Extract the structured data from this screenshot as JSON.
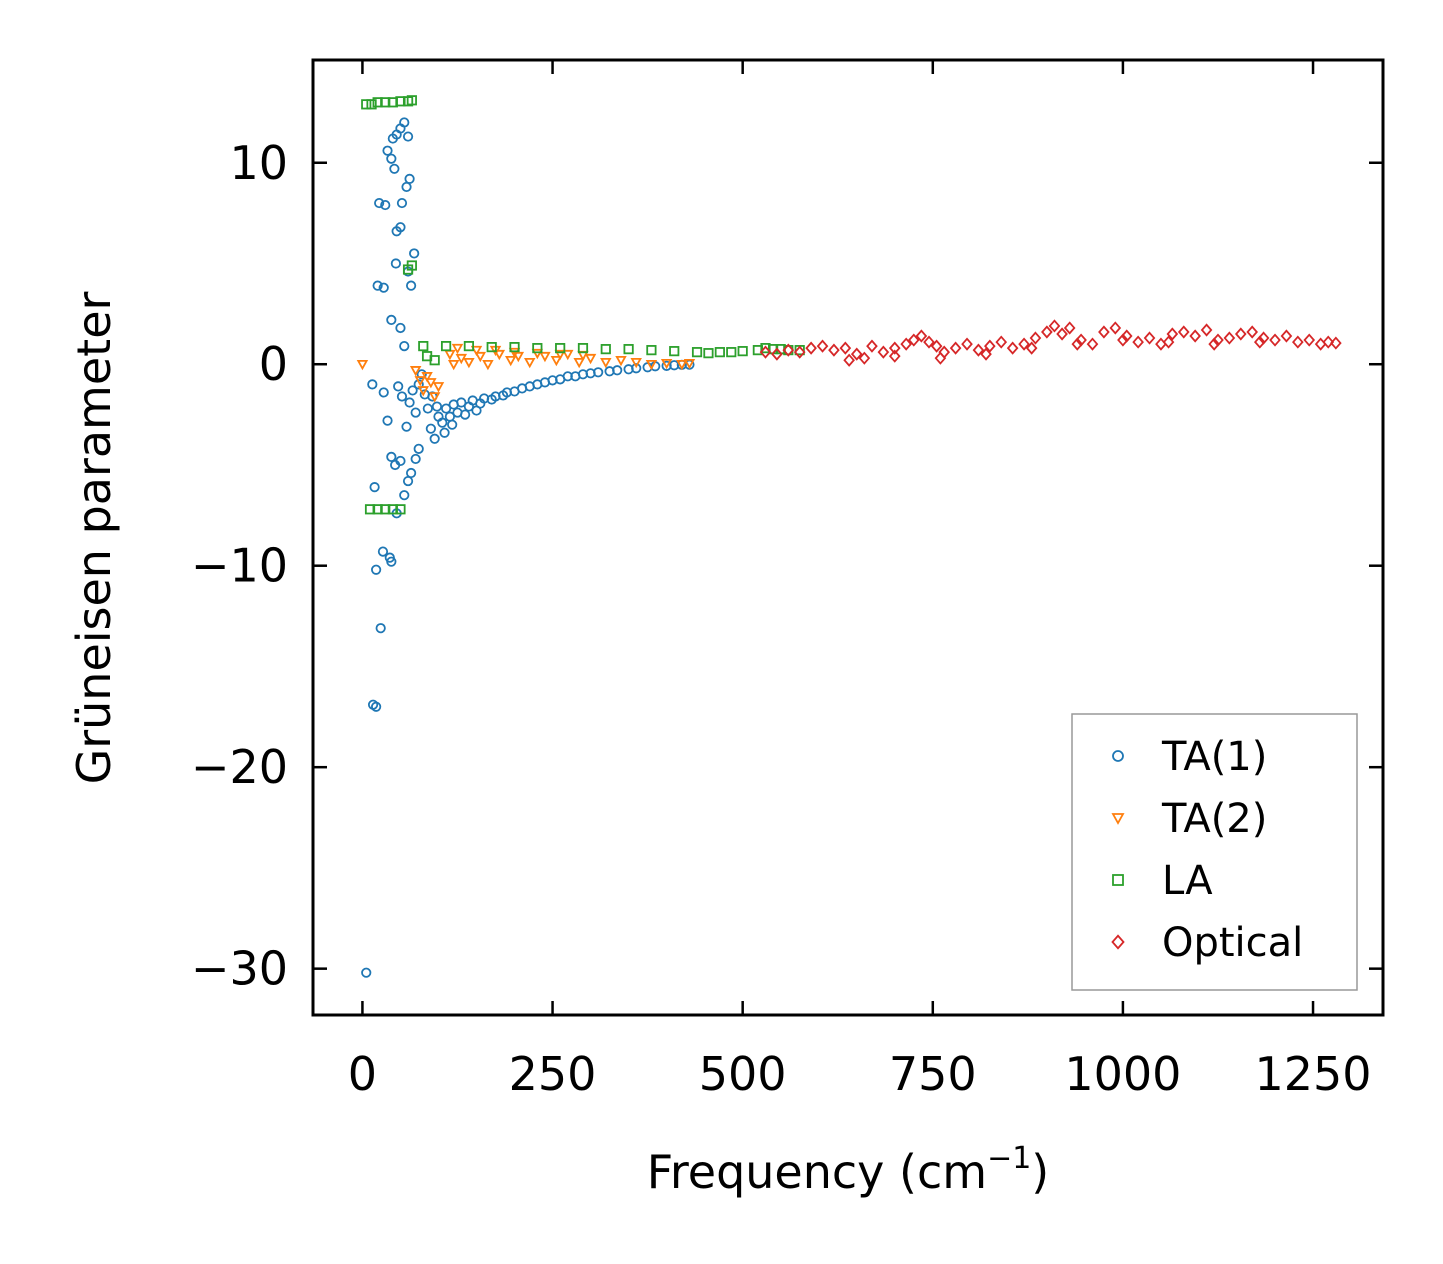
{
  "chart_data": {
    "type": "scatter",
    "title": "",
    "xlabel": "Frequency (cm",
    "xlabel_sup": "−1",
    "xlabel_end": ")",
    "ylabel": "Grüneisen parameter",
    "xlim": [
      -65,
      1342
    ],
    "ylim": [
      -32.3,
      15.1
    ],
    "xticks": [
      0,
      250,
      500,
      750,
      1000,
      1250
    ],
    "yticks": [
      10,
      0,
      -10,
      -20,
      -30
    ],
    "xtick_labels": [
      "0",
      "250",
      "500",
      "750",
      "1000",
      "1250"
    ],
    "ytick_labels": [
      "10",
      "0",
      "−10",
      "−20",
      "−30"
    ],
    "legend_position": "bottom-right",
    "series": [
      {
        "name": "TA(1)",
        "marker": "circle",
        "color": "#1f77b4",
        "points": [
          [
            5,
            -30.2
          ],
          [
            14,
            -16.9
          ],
          [
            18,
            -17.0
          ],
          [
            24,
            -13.1
          ],
          [
            18,
            -10.2
          ],
          [
            27,
            -9.3
          ],
          [
            36,
            -9.6
          ],
          [
            38,
            -9.8
          ],
          [
            16,
            -6.1
          ],
          [
            45,
            -7.4
          ],
          [
            13,
            -1.0
          ],
          [
            28,
            -1.4
          ],
          [
            33,
            -2.8
          ],
          [
            38,
            -4.6
          ],
          [
            43,
            -5.0
          ],
          [
            50,
            -4.8
          ],
          [
            55,
            -6.5
          ],
          [
            60,
            -5.8
          ],
          [
            64,
            -5.4
          ],
          [
            70,
            -4.7
          ],
          [
            74,
            -4.2
          ],
          [
            20,
            3.9
          ],
          [
            28,
            3.8
          ],
          [
            38,
            2.2
          ],
          [
            44,
            5.0
          ],
          [
            50,
            1.8
          ],
          [
            55,
            0.9
          ],
          [
            60,
            4.6
          ],
          [
            64,
            3.9
          ],
          [
            68,
            5.5
          ],
          [
            22,
            8.0
          ],
          [
            30,
            7.9
          ],
          [
            38,
            10.2
          ],
          [
            40,
            11.2
          ],
          [
            45,
            11.4
          ],
          [
            50,
            11.7
          ],
          [
            55,
            12.0
          ],
          [
            60,
            11.3
          ],
          [
            62,
            9.2
          ],
          [
            58,
            8.8
          ],
          [
            52,
            8.0
          ],
          [
            45,
            6.6
          ],
          [
            50,
            6.8
          ],
          [
            42,
            9.7
          ],
          [
            33,
            10.6
          ],
          [
            47,
            -1.1
          ],
          [
            52,
            -1.6
          ],
          [
            58,
            -3.1
          ],
          [
            62,
            -1.9
          ],
          [
            66,
            -1.3
          ],
          [
            70,
            -2.4
          ],
          [
            74,
            -1.0
          ],
          [
            78,
            -0.5
          ],
          [
            82,
            -1.5
          ],
          [
            86,
            -2.2
          ],
          [
            90,
            -3.2
          ],
          [
            95,
            -3.7
          ],
          [
            100,
            -2.6
          ],
          [
            110,
            -2.2
          ],
          [
            120,
            -2.0
          ],
          [
            130,
            -1.9
          ],
          [
            145,
            -1.8
          ],
          [
            160,
            -1.7
          ],
          [
            175,
            -1.6
          ],
          [
            190,
            -1.4
          ],
          [
            210,
            -1.2
          ],
          [
            230,
            -1.0
          ],
          [
            250,
            -0.8
          ],
          [
            270,
            -0.6
          ],
          [
            290,
            -0.5
          ],
          [
            310,
            -0.4
          ],
          [
            335,
            -0.3
          ],
          [
            360,
            -0.2
          ],
          [
            385,
            -0.1
          ],
          [
            410,
            -0.05
          ],
          [
            430,
            -0.02
          ],
          [
            105,
            -2.9
          ],
          [
            115,
            -2.6
          ],
          [
            125,
            -2.4
          ],
          [
            140,
            -2.1
          ],
          [
            155,
            -1.95
          ],
          [
            170,
            -1.75
          ],
          [
            185,
            -1.55
          ],
          [
            200,
            -1.35
          ],
          [
            220,
            -1.1
          ],
          [
            240,
            -0.9
          ],
          [
            260,
            -0.75
          ],
          [
            280,
            -0.6
          ],
          [
            300,
            -0.45
          ],
          [
            325,
            -0.35
          ],
          [
            350,
            -0.25
          ],
          [
            375,
            -0.15
          ],
          [
            400,
            -0.08
          ],
          [
            420,
            -0.03
          ],
          [
            92,
            -1.6
          ],
          [
            98,
            -2.1
          ],
          [
            108,
            -3.4
          ],
          [
            118,
            -3.0
          ],
          [
            135,
            -2.5
          ],
          [
            150,
            -2.3
          ]
        ]
      },
      {
        "name": "TA(2)",
        "marker": "triangle-down",
        "color": "#ff7f0e",
        "points": [
          [
            0,
            0.0
          ],
          [
            70,
            -0.3
          ],
          [
            76,
            -0.8
          ],
          [
            80,
            -1.3
          ],
          [
            85,
            -0.6
          ],
          [
            90,
            -0.9
          ],
          [
            115,
            0.5
          ],
          [
            120,
            0.0
          ],
          [
            130,
            0.3
          ],
          [
            140,
            0.1
          ],
          [
            155,
            0.4
          ],
          [
            165,
            0.0
          ],
          [
            180,
            0.5
          ],
          [
            195,
            0.2
          ],
          [
            205,
            0.4
          ],
          [
            220,
            0.1
          ],
          [
            240,
            0.4
          ],
          [
            255,
            0.2
          ],
          [
            270,
            0.5
          ],
          [
            285,
            0.1
          ],
          [
            300,
            0.3
          ],
          [
            320,
            0.1
          ],
          [
            340,
            0.2
          ],
          [
            360,
            0.1
          ],
          [
            380,
            0.0
          ],
          [
            400,
            0.05
          ],
          [
            420,
            0.0
          ],
          [
            430,
            0.05
          ],
          [
            125,
            0.8
          ],
          [
            150,
            0.7
          ],
          [
            175,
            0.7
          ],
          [
            200,
            0.6
          ],
          [
            230,
            0.55
          ],
          [
            260,
            0.5
          ],
          [
            290,
            0.45
          ],
          [
            95,
            -1.6
          ],
          [
            100,
            -1.1
          ]
        ]
      },
      {
        "name": "LA",
        "marker": "square",
        "color": "#2ca02c",
        "points": [
          [
            5,
            12.9
          ],
          [
            12,
            12.9
          ],
          [
            20,
            13.0
          ],
          [
            30,
            13.0
          ],
          [
            40,
            13.0
          ],
          [
            50,
            13.05
          ],
          [
            60,
            13.05
          ],
          [
            65,
            13.1
          ],
          [
            10,
            -7.2
          ],
          [
            20,
            -7.2
          ],
          [
            30,
            -7.2
          ],
          [
            40,
            -7.2
          ],
          [
            50,
            -7.2
          ],
          [
            60,
            4.7
          ],
          [
            65,
            4.9
          ],
          [
            80,
            0.9
          ],
          [
            110,
            0.9
          ],
          [
            140,
            0.9
          ],
          [
            170,
            0.85
          ],
          [
            200,
            0.85
          ],
          [
            230,
            0.8
          ],
          [
            260,
            0.8
          ],
          [
            290,
            0.8
          ],
          [
            320,
            0.75
          ],
          [
            350,
            0.75
          ],
          [
            380,
            0.7
          ],
          [
            410,
            0.65
          ],
          [
            440,
            0.6
          ],
          [
            470,
            0.6
          ],
          [
            500,
            0.65
          ],
          [
            520,
            0.7
          ],
          [
            540,
            0.75
          ],
          [
            560,
            0.7
          ],
          [
            575,
            0.7
          ],
          [
            85,
            0.4
          ],
          [
            95,
            0.2
          ],
          [
            455,
            0.55
          ],
          [
            485,
            0.6
          ],
          [
            530,
            0.8
          ],
          [
            550,
            0.75
          ]
        ]
      },
      {
        "name": "Optical",
        "marker": "diamond",
        "color": "#d62728",
        "points": [
          [
            530,
            0.6
          ],
          [
            545,
            0.5
          ],
          [
            560,
            0.7
          ],
          [
            575,
            0.6
          ],
          [
            590,
            0.8
          ],
          [
            605,
            0.9
          ],
          [
            620,
            0.7
          ],
          [
            635,
            0.8
          ],
          [
            650,
            0.5
          ],
          [
            660,
            0.3
          ],
          [
            670,
            0.9
          ],
          [
            685,
            0.6
          ],
          [
            700,
            0.8
          ],
          [
            715,
            1.0
          ],
          [
            725,
            1.2
          ],
          [
            735,
            1.4
          ],
          [
            745,
            1.1
          ],
          [
            755,
            0.9
          ],
          [
            765,
            0.6
          ],
          [
            780,
            0.8
          ],
          [
            795,
            1.0
          ],
          [
            810,
            0.7
          ],
          [
            825,
            0.9
          ],
          [
            840,
            1.1
          ],
          [
            855,
            0.8
          ],
          [
            870,
            1.0
          ],
          [
            885,
            1.3
          ],
          [
            900,
            1.6
          ],
          [
            910,
            1.9
          ],
          [
            920,
            1.5
          ],
          [
            930,
            1.8
          ],
          [
            945,
            1.2
          ],
          [
            960,
            1.0
          ],
          [
            975,
            1.6
          ],
          [
            990,
            1.8
          ],
          [
            1005,
            1.4
          ],
          [
            1020,
            1.1
          ],
          [
            1035,
            1.3
          ],
          [
            1050,
            1.0
          ],
          [
            1065,
            1.5
          ],
          [
            1080,
            1.6
          ],
          [
            1095,
            1.4
          ],
          [
            1110,
            1.7
          ],
          [
            1125,
            1.2
          ],
          [
            1140,
            1.3
          ],
          [
            1155,
            1.5
          ],
          [
            1170,
            1.6
          ],
          [
            1185,
            1.3
          ],
          [
            1200,
            1.2
          ],
          [
            1215,
            1.4
          ],
          [
            1230,
            1.1
          ],
          [
            1245,
            1.2
          ],
          [
            1260,
            1.0
          ],
          [
            1270,
            1.1
          ],
          [
            1280,
            1.05
          ],
          [
            640,
            0.2
          ],
          [
            700,
            0.4
          ],
          [
            760,
            0.3
          ],
          [
            820,
            0.5
          ],
          [
            880,
            0.8
          ],
          [
            940,
            1.0
          ],
          [
            1000,
            1.2
          ],
          [
            1060,
            1.1
          ],
          [
            1120,
            1.0
          ],
          [
            1180,
            1.1
          ]
        ]
      }
    ]
  }
}
